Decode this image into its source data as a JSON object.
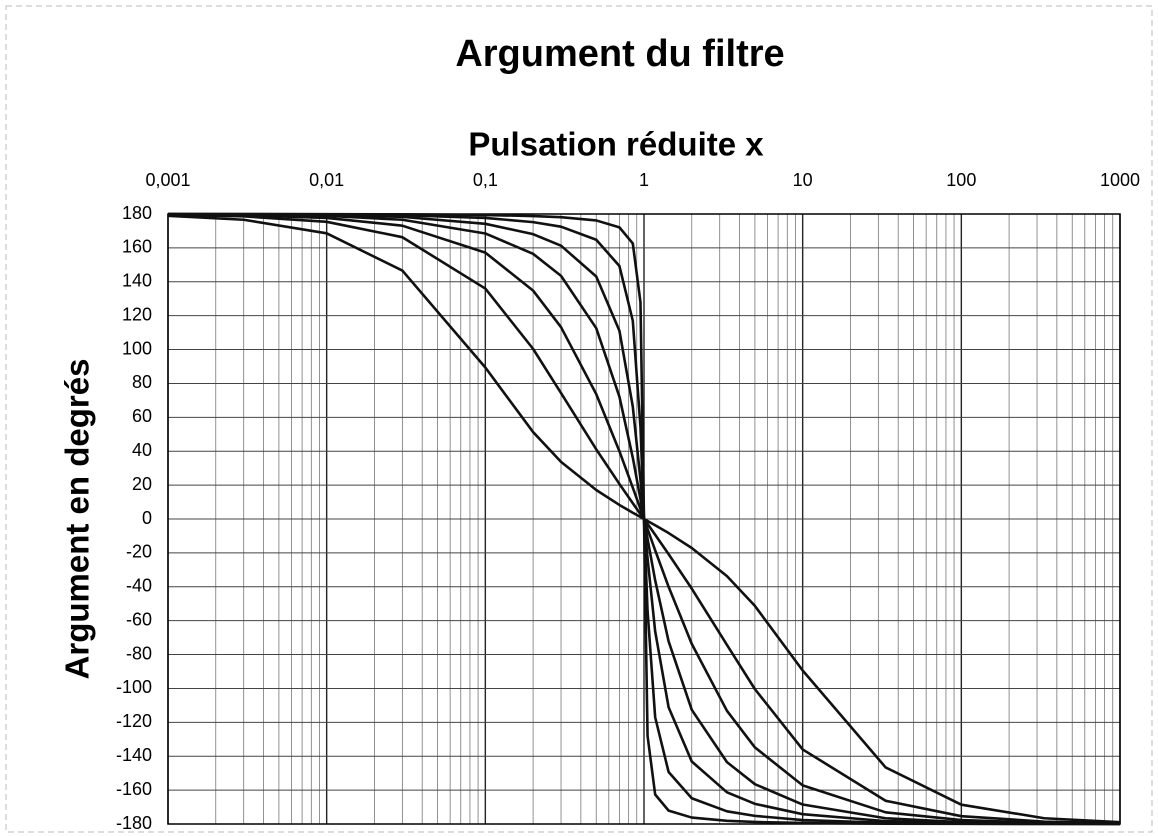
{
  "chart_data": {
    "type": "line",
    "title": "Argument du filtre",
    "xlabel": "Pulsation réduite x",
    "ylabel": "Argument en degrés",
    "xscale": "log",
    "grid": true,
    "minor_grid": true,
    "xlim": [
      0.001,
      1000
    ],
    "xticks": [
      {
        "value": 0.001,
        "label": "0,001"
      },
      {
        "value": 0.01,
        "label": "0,01"
      },
      {
        "value": 0.1,
        "label": "0,1"
      },
      1,
      10,
      100,
      1000
    ],
    "ylim": [
      -180,
      180
    ],
    "yticks": [
      -180,
      -160,
      -140,
      -120,
      -100,
      -80,
      -60,
      -40,
      -20,
      0,
      20,
      40,
      60,
      80,
      100,
      120,
      140,
      160,
      180
    ],
    "x": [
      0.001,
      0.003,
      0.01,
      0.03,
      0.1,
      0.2,
      0.3,
      0.5,
      0.7,
      0.85,
      0.95,
      1,
      1.053,
      1.176,
      1.429,
      2,
      3.333,
      5,
      10,
      33.33,
      100,
      333.3,
      1000
    ],
    "series": [
      {
        "color": "#111111",
        "values": [
          178.9,
          176.6,
          168.6,
          146.6,
          89.4,
          51.3,
          33.7,
          17.1,
          8.3,
          3.7,
          1.2,
          0,
          -1.2,
          -3.7,
          -8.3,
          -17.1,
          -33.7,
          -51.3,
          -89.4,
          -146.6,
          -168.6,
          -176.6,
          -178.9
        ]
      },
      {
        "color": "#111111",
        "values": [
          179.5,
          178.6,
          175.4,
          166.3,
          136.0,
          100.4,
          74.3,
          41.1,
          20.7,
          9.3,
          2.9,
          0,
          -2.9,
          -9.3,
          -20.7,
          -41.1,
          -74.3,
          -100.4,
          -136.0,
          -166.3,
          -175.4,
          -178.6,
          -179.5
        ]
      },
      {
        "color": "#111111",
        "values": [
          179.8,
          179.3,
          177.7,
          173.1,
          157.2,
          134.8,
          113.2,
          73.7,
          40.0,
          18.5,
          5.9,
          0,
          -5.9,
          -18.5,
          -40.0,
          -73.7,
          -113.2,
          -134.8,
          -157.2,
          -173.1,
          -177.7,
          -179.3,
          -179.8
        ]
      },
      {
        "color": "#111111",
        "values": [
          179.9,
          179.7,
          178.9,
          176.6,
          168.5,
          156.5,
          143.5,
          112.6,
          72.2,
          36.2,
          11.7,
          0,
          -11.7,
          -36.2,
          -72.2,
          -112.6,
          -143.5,
          -156.5,
          -168.5,
          -176.6,
          -178.9,
          -179.7,
          -179.9
        ]
      },
      {
        "color": "#111111",
        "values": [
          179.9,
          179.8,
          179.4,
          178.3,
          174.2,
          168.1,
          161.3,
          143.1,
          111.1,
          66.3,
          23.2,
          0,
          -23.2,
          -66.3,
          -111.1,
          -143.1,
          -161.3,
          -168.1,
          -174.2,
          -178.3,
          -179.4,
          -179.8,
          -179.9
        ]
      },
      {
        "color": "#111111",
        "values": [
          180.0,
          179.9,
          179.8,
          179.3,
          177.7,
          175.2,
          172.5,
          164.8,
          149.3,
          117.0,
          54.3,
          0,
          -54.3,
          -117.0,
          -149.3,
          -164.8,
          -172.5,
          -175.2,
          -177.7,
          -179.3,
          -179.8,
          -179.9,
          -180.0
        ]
      },
      {
        "color": "#111111",
        "values": [
          180.0,
          180.0,
          179.9,
          179.8,
          179.4,
          178.8,
          178.1,
          176.2,
          172.1,
          162.6,
          128.0,
          0,
          -128.0,
          -162.6,
          -172.1,
          -176.2,
          -178.1,
          -178.8,
          -179.4,
          -179.8,
          -179.9,
          -180.0,
          -180.0
        ]
      }
    ]
  }
}
